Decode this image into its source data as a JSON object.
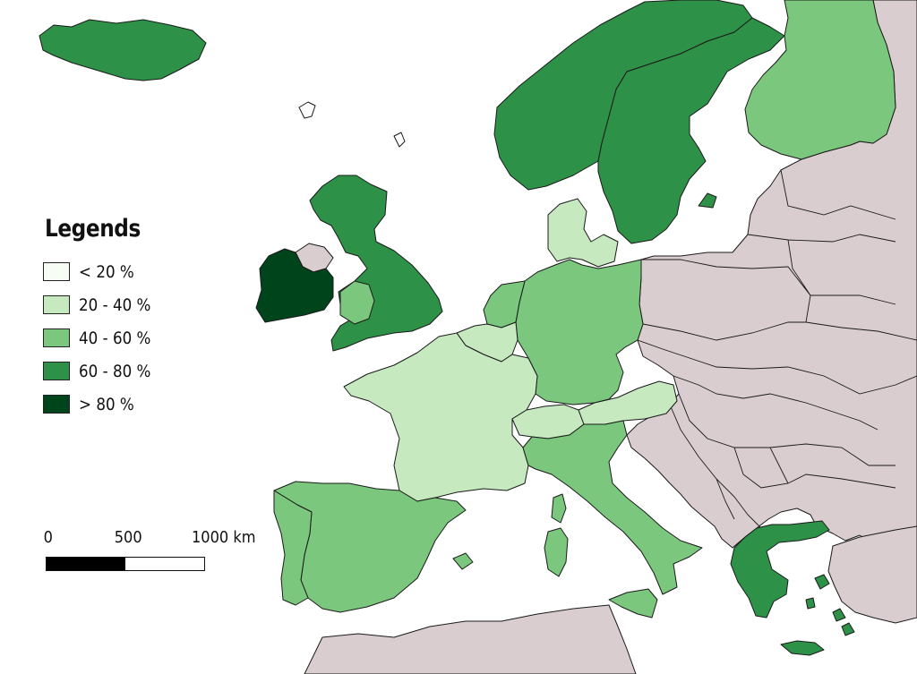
{
  "legend": {
    "title": "Legends",
    "items": [
      {
        "label": "< 20 %",
        "color": "#f7fcf5"
      },
      {
        "label": "20 - 40 %",
        "color": "#c7e9c0"
      },
      {
        "label": "40 - 60 %",
        "color": "#7bc77e"
      },
      {
        "label": "60 - 80 %",
        "color": "#2e9148"
      },
      {
        "label": "> 80 %",
        "color": "#00441b"
      }
    ]
  },
  "scale": {
    "ticks": [
      "0",
      "500",
      "1000 km"
    ]
  },
  "colors": {
    "no_data": "#d9cdcf",
    "sea": "#ffffff",
    "border": "#1a1a1a"
  },
  "countries": [
    {
      "name": "Iceland",
      "class": "60 - 80 %"
    },
    {
      "name": "Norway",
      "class": "60 - 80 %"
    },
    {
      "name": "Sweden",
      "class": "60 - 80 %"
    },
    {
      "name": "Finland",
      "class": "40 - 60 %"
    },
    {
      "name": "Ireland",
      "class": "> 80 %"
    },
    {
      "name": "United Kingdom",
      "class": "60 - 80 %"
    },
    {
      "name": "Denmark",
      "class": "20 - 40 %"
    },
    {
      "name": "Netherlands",
      "class": "40 - 60 %"
    },
    {
      "name": "Belgium",
      "class": "20 - 40 %"
    },
    {
      "name": "Luxembourg",
      "class": "20 - 40 %"
    },
    {
      "name": "France",
      "class": "20 - 40 %"
    },
    {
      "name": "Germany",
      "class": "40 - 60 %"
    },
    {
      "name": "Switzerland",
      "class": "20 - 40 %"
    },
    {
      "name": "Austria",
      "class": "20 - 40 %"
    },
    {
      "name": "Italy",
      "class": "40 - 60 %"
    },
    {
      "name": "Spain",
      "class": "40 - 60 %"
    },
    {
      "name": "Portugal",
      "class": "40 - 60 %"
    },
    {
      "name": "Greece",
      "class": "60 - 80 %"
    },
    {
      "name": "Cyprus",
      "class": "60 - 80 %"
    }
  ]
}
